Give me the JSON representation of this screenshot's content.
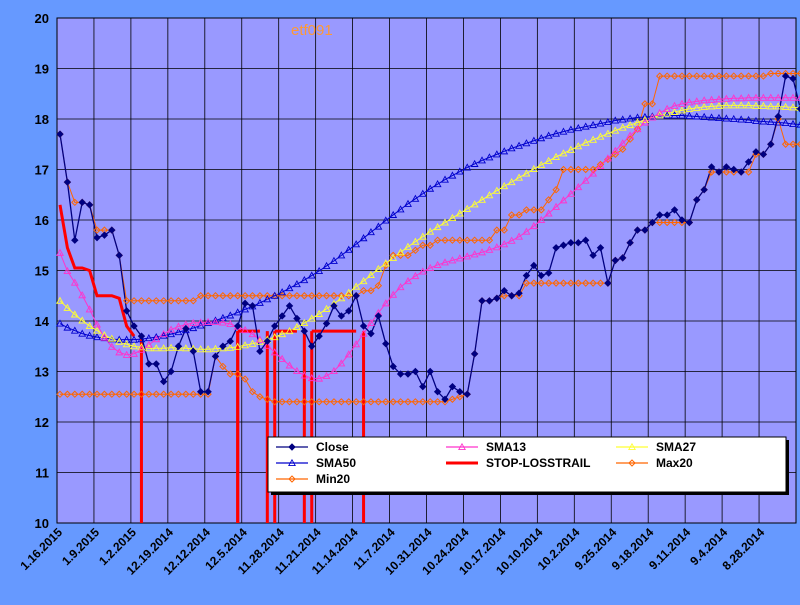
{
  "chart_data": {
    "type": "line",
    "title": "etf091",
    "ylim": [
      10,
      20
    ],
    "yticks": [
      10,
      11,
      12,
      13,
      14,
      15,
      16,
      17,
      18,
      19,
      20
    ],
    "xtick_labels": [
      "1.16.2015",
      "1.9.2015",
      "1.2.2015",
      "12.19.2014",
      "12.12.2014",
      "12.5.2014",
      "11.28.2014",
      "11.21.2014",
      "11.14.2014",
      "11.7.2014",
      "10.31.2014",
      "10.24.2014",
      "10.17.2014",
      "10.10.2014",
      "10.2.2014",
      "9.25.2014",
      "9.18.2014",
      "9.11.2014",
      "9.4.2014",
      "8.28.2014"
    ],
    "grid": true,
    "legend_position": "bottom-right",
    "n_points": 100,
    "colors": {
      "plot_bg": "#9999ff",
      "outer_bg": "#6699ff",
      "grid": "#000000",
      "title": "#ff9933"
    },
    "series": [
      {
        "name": "Close",
        "color": "#000080",
        "marker": "diamond",
        "values": [
          17.7,
          16.75,
          15.6,
          16.35,
          16.3,
          15.65,
          15.7,
          15.8,
          15.3,
          14.2,
          13.9,
          13.7,
          13.15,
          13.15,
          12.8,
          13.0,
          13.5,
          13.85,
          13.4,
          12.6,
          12.6,
          13.3,
          13.5,
          13.6,
          13.9,
          14.35,
          14.3,
          13.4,
          13.6,
          13.9,
          14.1,
          14.3,
          14.05,
          13.8,
          13.5,
          13.7,
          13.95,
          14.3,
          14.1,
          14.2,
          14.5,
          13.9,
          13.75,
          14.1,
          13.55,
          13.1,
          12.95,
          12.95,
          13.0,
          12.7,
          13.0,
          12.6,
          12.45,
          12.7,
          12.6,
          12.55,
          13.35,
          14.4,
          14.4,
          14.45,
          14.6,
          14.5,
          14.55,
          14.9,
          15.1,
          14.9,
          14.95,
          15.45,
          15.5,
          15.55,
          15.55,
          15.6,
          15.3,
          15.45,
          14.75,
          15.2,
          15.25,
          15.55,
          15.8,
          15.8,
          15.95,
          16.1,
          16.1,
          16.2,
          16.0,
          15.95,
          16.4,
          16.6,
          17.05,
          16.95,
          17.05,
          17.0,
          16.95,
          17.15,
          17.35,
          17.3,
          17.5,
          18.05,
          18.85,
          18.8,
          18.2,
          18.1
        ]
      },
      {
        "name": "SMA13",
        "color": "#ff33cc",
        "marker": "triangle",
        "values": [
          15.35,
          14.99,
          14.76,
          14.51,
          14.23,
          13.93,
          13.67,
          13.49,
          13.38,
          13.33,
          13.35,
          13.43,
          13.53,
          13.64,
          13.74,
          13.83,
          13.89,
          13.93,
          13.96,
          13.97,
          13.98,
          13.98,
          13.97,
          13.94,
          13.89,
          13.82,
          13.74,
          13.63,
          13.51,
          13.38,
          13.25,
          13.12,
          13.01,
          12.92,
          12.87,
          12.86,
          12.91,
          13.01,
          13.16,
          13.34,
          13.54,
          13.75,
          13.96,
          14.16,
          14.35,
          14.52,
          14.67,
          14.79,
          14.89,
          14.98,
          15.05,
          15.11,
          15.16,
          15.2,
          15.24,
          15.28,
          15.32,
          15.36,
          15.41,
          15.46,
          15.52,
          15.59,
          15.67,
          15.77,
          15.88,
          16.0,
          16.13,
          16.26,
          16.39,
          16.52,
          16.65,
          16.78,
          16.92,
          17.07,
          17.22,
          17.37,
          17.52,
          17.67,
          17.8,
          17.93,
          18.03,
          18.12,
          18.2,
          18.26,
          18.3,
          18.33,
          18.35,
          18.37,
          18.38,
          18.39,
          18.4,
          18.41,
          18.41,
          18.42,
          18.42,
          18.42,
          18.42,
          18.42,
          18.42,
          18.42,
          18.42,
          18.42
        ]
      },
      {
        "name": "SMA27",
        "color": "#ffff33",
        "marker": "triangle",
        "values": [
          14.4,
          14.26,
          14.13,
          14.01,
          13.9,
          13.81,
          13.72,
          13.65,
          13.59,
          13.54,
          13.5,
          13.48,
          13.46,
          13.46,
          13.46,
          13.47,
          13.47,
          13.46,
          13.45,
          13.44,
          13.44,
          13.45,
          13.46,
          13.47,
          13.49,
          13.52,
          13.55,
          13.59,
          13.63,
          13.68,
          13.74,
          13.8,
          13.88,
          13.96,
          14.05,
          14.14,
          14.24,
          14.34,
          14.45,
          14.56,
          14.68,
          14.79,
          14.91,
          15.03,
          15.14,
          15.25,
          15.36,
          15.47,
          15.57,
          15.67,
          15.77,
          15.86,
          15.95,
          16.04,
          16.13,
          16.22,
          16.31,
          16.4,
          16.49,
          16.58,
          16.67,
          16.75,
          16.84,
          16.92,
          17.01,
          17.09,
          17.17,
          17.25,
          17.32,
          17.39,
          17.46,
          17.53,
          17.59,
          17.65,
          17.71,
          17.77,
          17.83,
          17.88,
          17.93,
          17.98,
          18.03,
          18.07,
          18.11,
          18.14,
          18.17,
          18.2,
          18.22,
          18.24,
          18.25,
          18.26,
          18.27,
          18.27,
          18.27,
          18.27,
          18.26,
          18.26,
          18.25,
          18.25,
          18.24,
          18.23,
          18.22,
          18.2
        ]
      },
      {
        "name": "SMA50",
        "color": "#0000cc",
        "marker": "triangle",
        "values": [
          13.95,
          13.87,
          13.81,
          13.75,
          13.71,
          13.68,
          13.66,
          13.64,
          13.63,
          13.63,
          13.63,
          13.64,
          13.66,
          13.68,
          13.71,
          13.74,
          13.78,
          13.82,
          13.86,
          13.91,
          13.96,
          14.01,
          14.06,
          14.11,
          14.17,
          14.23,
          14.29,
          14.36,
          14.43,
          14.5,
          14.57,
          14.65,
          14.73,
          14.81,
          14.9,
          14.99,
          15.09,
          15.19,
          15.3,
          15.41,
          15.52,
          15.64,
          15.76,
          15.87,
          15.99,
          16.1,
          16.21,
          16.32,
          16.42,
          16.52,
          16.62,
          16.71,
          16.8,
          16.88,
          16.96,
          17.04,
          17.11,
          17.18,
          17.24,
          17.3,
          17.36,
          17.42,
          17.47,
          17.52,
          17.57,
          17.62,
          17.67,
          17.71,
          17.75,
          17.79,
          17.82,
          17.85,
          17.88,
          17.91,
          17.94,
          17.97,
          17.99,
          18.01,
          18.03,
          18.04,
          18.05,
          18.06,
          18.07,
          18.07,
          18.07,
          18.06,
          18.05,
          18.04,
          18.03,
          18.02,
          18.01,
          18.0,
          17.99,
          17.98,
          17.96,
          17.95,
          17.94,
          17.93,
          17.92,
          17.9,
          17.89,
          17.88
        ]
      },
      {
        "name": "STOP-LOSSTRAIL",
        "color": "#ff0000",
        "marker": "none",
        "values": [
          16.3,
          15.45,
          15.05,
          15.05,
          15.0,
          14.5,
          14.5,
          14.5,
          14.45,
          13.9,
          13.7,
          null,
          null,
          null,
          null,
          null,
          null,
          null,
          null,
          null,
          null,
          null,
          null,
          null,
          13.8,
          13.8,
          13.8,
          13.8,
          null,
          13.8,
          13.8,
          13.8,
          13.8,
          null,
          13.8,
          13.8,
          13.8,
          13.8,
          13.8,
          13.8,
          13.8,
          null,
          null,
          null,
          null,
          null,
          null,
          null,
          null,
          null,
          null,
          null,
          null,
          null,
          null,
          null,
          null,
          null,
          null,
          null,
          null,
          null,
          null,
          null,
          null,
          null,
          null,
          null,
          null,
          null,
          null,
          null,
          null,
          null,
          null,
          null,
          null,
          null,
          null,
          null,
          null,
          null,
          null,
          null,
          null,
          null,
          null,
          null,
          null,
          null,
          null,
          null,
          null,
          null,
          null,
          null,
          null,
          null,
          null,
          null,
          null,
          null
        ]
      },
      {
        "name": "Max20",
        "color": "#ff6600",
        "marker": "diamond",
        "values": [
          17.7,
          16.75,
          16.35,
          16.35,
          16.3,
          15.8,
          15.8,
          15.8,
          15.3,
          14.4,
          14.4,
          14.4,
          14.4,
          14.4,
          14.4,
          14.4,
          14.4,
          14.4,
          14.4,
          14.5,
          14.5,
          14.5,
          14.5,
          14.5,
          14.5,
          14.5,
          14.5,
          14.5,
          14.5,
          14.5,
          14.5,
          14.5,
          14.5,
          14.5,
          14.5,
          14.5,
          14.5,
          14.5,
          14.5,
          14.5,
          14.5,
          14.6,
          14.6,
          14.7,
          15.1,
          15.3,
          15.3,
          15.3,
          15.4,
          15.5,
          15.5,
          15.6,
          15.6,
          15.6,
          15.6,
          15.6,
          15.6,
          15.6,
          15.6,
          15.8,
          15.8,
          16.1,
          16.1,
          16.2,
          16.2,
          16.2,
          16.4,
          16.6,
          17.0,
          17.0,
          17.0,
          17.0,
          17.0,
          17.1,
          17.2,
          17.3,
          17.4,
          17.6,
          17.8,
          18.3,
          18.3,
          18.85,
          18.85,
          18.85,
          18.85,
          18.85,
          18.85,
          18.85,
          18.85,
          18.85,
          18.85,
          18.85,
          18.85,
          18.85,
          18.85,
          18.85,
          18.9,
          18.9,
          18.9,
          18.9,
          18.9,
          18.9
        ]
      },
      {
        "name": "Min20",
        "color": "#ff6600",
        "marker": "diamond",
        "values": [
          12.55,
          12.55,
          12.55,
          12.55,
          12.55,
          12.55,
          12.55,
          12.55,
          12.55,
          12.55,
          12.55,
          12.55,
          12.55,
          12.55,
          12.55,
          12.55,
          12.55,
          12.55,
          12.55,
          12.55,
          12.55,
          13.3,
          13.1,
          12.95,
          12.95,
          12.85,
          12.6,
          12.5,
          12.45,
          12.4,
          12.4,
          12.4,
          12.4,
          12.4,
          12.4,
          12.4,
          12.4,
          12.4,
          12.4,
          12.4,
          12.4,
          12.4,
          12.4,
          12.4,
          12.4,
          12.4,
          12.4,
          12.4,
          12.4,
          12.4,
          12.4,
          12.4,
          12.4,
          12.45,
          12.5,
          12.55,
          13.35,
          14.4,
          14.4,
          14.45,
          14.5,
          14.5,
          14.5,
          14.75,
          14.75,
          14.75,
          14.75,
          14.75,
          14.75,
          14.75,
          14.75,
          14.75,
          14.75,
          14.75,
          14.75,
          15.2,
          15.25,
          15.55,
          15.8,
          15.8,
          15.95,
          15.95,
          15.95,
          15.95,
          15.95,
          15.95,
          16.4,
          16.6,
          16.95,
          16.95,
          16.95,
          16.95,
          16.95,
          16.95,
          17.3,
          17.3,
          17.5,
          18.0,
          17.5,
          17.5,
          17.5,
          17.5
        ]
      }
    ],
    "stop_loss_drops": [
      11,
      24,
      28,
      33,
      41
    ]
  }
}
